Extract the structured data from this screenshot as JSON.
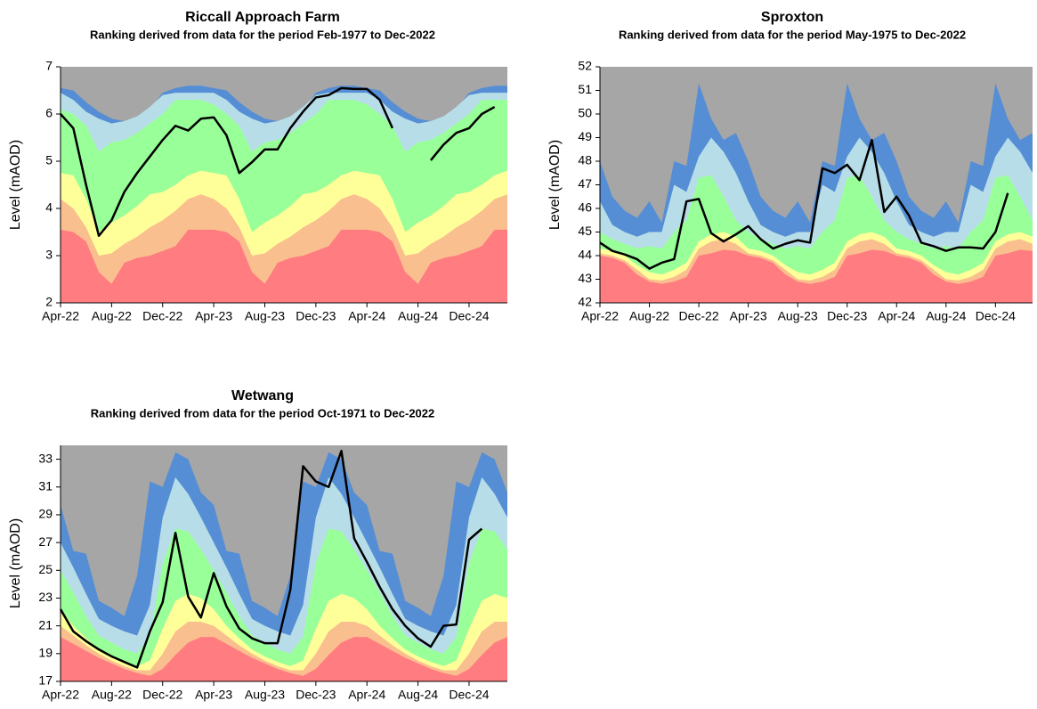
{
  "chart_data": [
    {
      "type": "area",
      "title": "Riccall Approach Farm",
      "subtitle": "Ranking derived from data for the period Feb-1977 to Dec-2022",
      "y_label": "Level (mAOD)",
      "categories": [
        "Apr-22",
        null,
        null,
        null,
        "Aug-22",
        null,
        null,
        null,
        "Dec-22",
        null,
        null,
        null,
        "Apr-23",
        null,
        null,
        null,
        "Aug-23",
        null,
        null,
        null,
        "Dec-23",
        null,
        null,
        null,
        "Apr-24",
        null,
        null,
        null,
        "Aug-24",
        null,
        null,
        null,
        "Dec-24",
        null,
        null,
        null
      ],
      "ylim": [
        2,
        7
      ],
      "yticks": [
        2,
        3,
        4,
        5,
        6,
        7
      ],
      "plot_color": "#a6a6a6",
      "series": [
        {
          "type": "area",
          "color": "#ff7c80",
          "values": [
            3.55,
            3.5,
            3.3,
            2.65,
            2.4,
            2.85,
            2.95,
            3.0,
            3.1,
            3.2,
            3.55,
            3.55,
            3.55,
            3.5,
            3.3,
            2.65,
            2.4,
            2.85,
            2.95,
            3.0,
            3.1,
            3.2,
            3.55,
            3.55,
            3.55,
            3.5,
            3.3,
            2.65,
            2.4,
            2.85,
            2.95,
            3.0,
            3.1,
            3.2,
            3.55,
            3.55
          ]
        },
        {
          "type": "area",
          "color": "#fabf8f",
          "values": [
            4.2,
            4.0,
            3.6,
            3.0,
            3.05,
            3.25,
            3.4,
            3.6,
            3.75,
            3.95,
            4.2,
            4.3,
            4.2,
            4.0,
            3.6,
            3.0,
            3.05,
            3.25,
            3.4,
            3.6,
            3.75,
            3.95,
            4.2,
            4.3,
            4.2,
            4.0,
            3.6,
            3.0,
            3.05,
            3.25,
            3.4,
            3.6,
            3.75,
            3.95,
            4.2,
            4.3
          ]
        },
        {
          "type": "area",
          "color": "#ffff99",
          "values": [
            4.75,
            4.7,
            4.2,
            3.5,
            3.7,
            3.85,
            4.05,
            4.3,
            4.35,
            4.5,
            4.7,
            4.8,
            4.75,
            4.7,
            4.2,
            3.5,
            3.7,
            3.85,
            4.05,
            4.3,
            4.35,
            4.5,
            4.7,
            4.8,
            4.75,
            4.7,
            4.2,
            3.5,
            3.7,
            3.85,
            4.05,
            4.3,
            4.35,
            4.5,
            4.7,
            4.8
          ]
        },
        {
          "type": "area",
          "color": "#99ff99",
          "values": [
            6.1,
            6.0,
            5.75,
            5.2,
            5.4,
            5.45,
            5.6,
            5.8,
            6.0,
            6.3,
            6.3,
            6.3,
            6.2,
            6.0,
            5.75,
            5.2,
            5.4,
            5.45,
            5.6,
            5.8,
            6.0,
            6.3,
            6.3,
            6.3,
            6.2,
            6.0,
            5.75,
            5.2,
            5.4,
            5.45,
            5.6,
            5.8,
            6.0,
            6.3,
            6.3,
            6.3
          ]
        },
        {
          "type": "area",
          "color": "#b7dee8",
          "values": [
            6.45,
            6.3,
            6.05,
            5.9,
            5.8,
            5.85,
            5.95,
            6.15,
            6.4,
            6.45,
            6.45,
            6.45,
            6.45,
            6.3,
            6.05,
            5.9,
            5.8,
            5.85,
            5.95,
            6.15,
            6.4,
            6.45,
            6.45,
            6.45,
            6.45,
            6.3,
            6.05,
            5.9,
            5.8,
            5.85,
            5.95,
            6.15,
            6.4,
            6.45,
            6.45,
            6.45
          ]
        },
        {
          "type": "area",
          "color": "#558ed5",
          "values": [
            6.55,
            6.5,
            6.25,
            6.05,
            5.9,
            5.85,
            5.9,
            6.1,
            6.45,
            6.55,
            6.6,
            6.6,
            6.55,
            6.5,
            6.25,
            6.05,
            5.9,
            5.85,
            5.9,
            6.1,
            6.45,
            6.55,
            6.6,
            6.6,
            6.55,
            6.5,
            6.25,
            6.05,
            5.9,
            5.85,
            5.9,
            6.1,
            6.45,
            6.55,
            6.6,
            6.6
          ]
        },
        {
          "type": "line",
          "color": "#000000",
          "values": [
            6.0,
            5.7,
            4.5,
            3.42,
            3.75,
            4.35,
            4.75,
            5.1,
            5.45,
            5.75,
            5.65,
            5.9,
            5.93,
            5.55,
            4.75,
            4.98,
            5.25,
            5.25,
            5.7,
            6.05,
            6.35,
            6.4,
            6.55,
            6.53,
            6.53,
            6.3,
            5.7,
            null,
            null,
            5.02,
            5.35,
            5.6,
            5.7,
            6.0,
            6.15,
            null
          ]
        }
      ]
    },
    {
      "type": "area",
      "title": "Sproxton",
      "subtitle": "Ranking derived from data for the period May-1975 to Dec-2022",
      "y_label": "Level (mAOD)",
      "categories": [
        "Apr-22",
        null,
        null,
        null,
        "Aug-22",
        null,
        null,
        null,
        "Dec-22",
        null,
        null,
        null,
        "Apr-23",
        null,
        null,
        null,
        "Aug-23",
        null,
        null,
        null,
        "Dec-23",
        null,
        null,
        null,
        "Apr-24",
        null,
        null,
        null,
        "Aug-24",
        null,
        null,
        null,
        "Dec-24",
        null,
        null,
        null
      ],
      "ylim": [
        42,
        52
      ],
      "yticks": [
        42,
        43,
        44,
        45,
        46,
        47,
        48,
        49,
        50,
        51,
        52
      ],
      "plot_color": "#a6a6a6",
      "series": [
        {
          "type": "area",
          "color": "#ff7c80",
          "values": [
            44.0,
            43.9,
            43.7,
            43.2,
            42.9,
            42.8,
            42.9,
            43.1,
            44.0,
            44.1,
            44.25,
            44.2,
            44.0,
            43.9,
            43.7,
            43.2,
            42.9,
            42.8,
            42.9,
            43.1,
            44.0,
            44.1,
            44.25,
            44.2,
            44.0,
            43.9,
            43.7,
            43.2,
            42.9,
            42.8,
            42.9,
            43.1,
            44.0,
            44.1,
            44.25,
            44.2
          ]
        },
        {
          "type": "area",
          "color": "#fabf8f",
          "values": [
            44.1,
            44.0,
            43.8,
            43.4,
            43.0,
            42.95,
            43.1,
            43.4,
            44.3,
            44.6,
            44.7,
            44.5,
            44.1,
            44.0,
            43.8,
            43.4,
            43.0,
            42.95,
            43.1,
            43.4,
            44.3,
            44.6,
            44.7,
            44.5,
            44.1,
            44.0,
            43.8,
            43.4,
            43.0,
            42.95,
            43.1,
            43.4,
            44.3,
            44.6,
            44.7,
            44.5
          ]
        },
        {
          "type": "area",
          "color": "#ffff99",
          "values": [
            44.3,
            44.2,
            44.0,
            43.6,
            43.3,
            43.2,
            43.4,
            43.7,
            44.6,
            44.9,
            45.0,
            44.8,
            44.3,
            44.2,
            44.0,
            43.6,
            43.3,
            43.2,
            43.4,
            43.7,
            44.6,
            44.9,
            45.0,
            44.8,
            44.3,
            44.2,
            44.0,
            43.6,
            43.3,
            43.2,
            43.4,
            43.7,
            44.6,
            44.9,
            45.0,
            44.8
          ]
        },
        {
          "type": "area",
          "color": "#99ff99",
          "values": [
            45.0,
            44.7,
            44.5,
            44.3,
            44.4,
            44.3,
            45.0,
            45.5,
            47.3,
            47.4,
            46.5,
            45.5,
            45.0,
            44.7,
            44.5,
            44.3,
            44.4,
            44.3,
            45.0,
            45.5,
            47.3,
            47.4,
            46.5,
            45.5,
            45.0,
            44.7,
            44.5,
            44.3,
            44.4,
            44.3,
            45.0,
            45.5,
            47.3,
            47.4,
            46.5,
            45.5
          ]
        },
        {
          "type": "area",
          "color": "#b7dee8",
          "values": [
            46.3,
            45.3,
            45.0,
            44.8,
            45.0,
            45.0,
            47.0,
            46.7,
            48.2,
            49.0,
            48.4,
            47.5,
            46.3,
            45.3,
            45.0,
            44.8,
            45.0,
            45.0,
            47.0,
            46.7,
            48.2,
            49.0,
            48.4,
            47.5,
            46.3,
            45.3,
            45.0,
            44.8,
            45.0,
            45.0,
            47.0,
            46.7,
            48.2,
            49.0,
            48.4,
            47.5
          ]
        },
        {
          "type": "area",
          "color": "#558ed5",
          "values": [
            48.0,
            46.5,
            45.9,
            45.6,
            46.3,
            45.4,
            48.0,
            47.8,
            51.3,
            49.8,
            48.9,
            49.2,
            48.0,
            46.5,
            45.9,
            45.6,
            46.3,
            45.4,
            48.0,
            47.8,
            51.3,
            49.8,
            48.9,
            49.2,
            48.0,
            46.5,
            45.9,
            45.6,
            46.3,
            45.4,
            48.0,
            47.8,
            51.3,
            49.8,
            48.9,
            49.2
          ]
        },
        {
          "type": "line",
          "color": "#000000",
          "values": [
            44.55,
            44.2,
            44.05,
            43.85,
            43.45,
            43.7,
            43.85,
            46.3,
            46.4,
            44.95,
            44.6,
            44.9,
            45.25,
            44.7,
            44.3,
            44.5,
            44.65,
            44.55,
            47.7,
            47.5,
            47.85,
            47.2,
            48.9,
            45.85,
            46.5,
            45.7,
            44.55,
            44.4,
            44.2,
            44.35,
            44.35,
            44.3,
            45.0,
            46.65,
            null,
            null
          ]
        }
      ]
    },
    {
      "type": "area",
      "title": "Wetwang",
      "subtitle": "Ranking derived from data for the period Oct-1971 to Dec-2022",
      "y_label": "Level (mAOD)",
      "categories": [
        "Apr-22",
        null,
        null,
        null,
        "Aug-22",
        null,
        null,
        null,
        "Dec-22",
        null,
        null,
        null,
        "Apr-23",
        null,
        null,
        null,
        "Aug-23",
        null,
        null,
        null,
        "Dec-23",
        null,
        null,
        null,
        "Apr-24",
        null,
        null,
        null,
        "Aug-24",
        null,
        null,
        null,
        "Dec-24",
        null,
        null,
        null
      ],
      "ylim": [
        17,
        34
      ],
      "yticks": [
        17,
        19,
        21,
        23,
        25,
        27,
        29,
        31,
        33
      ],
      "plot_color": "#a6a6a6",
      "series": [
        {
          "type": "area",
          "color": "#ff7c80",
          "values": [
            20.2,
            19.7,
            19.2,
            18.7,
            18.3,
            17.9,
            17.6,
            17.4,
            17.9,
            18.9,
            19.8,
            20.2,
            20.2,
            19.7,
            19.2,
            18.7,
            18.3,
            17.9,
            17.6,
            17.4,
            17.9,
            18.9,
            19.8,
            20.2,
            20.2,
            19.7,
            19.2,
            18.7,
            18.3,
            17.9,
            17.6,
            17.4,
            17.9,
            18.9,
            19.8,
            20.2
          ]
        },
        {
          "type": "area",
          "color": "#fabf8f",
          "values": [
            21.0,
            20.3,
            19.6,
            19.0,
            18.5,
            18.1,
            17.8,
            17.8,
            19.0,
            20.6,
            21.3,
            21.3,
            21.0,
            20.3,
            19.6,
            19.0,
            18.5,
            18.1,
            17.8,
            17.8,
            19.0,
            20.6,
            21.3,
            21.3,
            21.0,
            20.3,
            19.6,
            19.0,
            18.5,
            18.1,
            17.8,
            17.8,
            19.0,
            20.6,
            21.3,
            21.3
          ]
        },
        {
          "type": "area",
          "color": "#ffff99",
          "values": [
            22.2,
            21.0,
            20.1,
            19.3,
            18.8,
            18.4,
            18.1,
            18.5,
            20.8,
            22.8,
            23.3,
            23.0,
            22.2,
            21.0,
            20.1,
            19.3,
            18.8,
            18.4,
            18.1,
            18.5,
            20.8,
            22.8,
            23.3,
            23.0,
            22.2,
            21.0,
            20.1,
            19.3,
            18.8,
            18.4,
            18.1,
            18.5,
            20.8,
            22.8,
            23.3,
            23.0
          ]
        },
        {
          "type": "area",
          "color": "#99ff99",
          "values": [
            25.0,
            23.4,
            21.7,
            20.3,
            19.8,
            19.3,
            19.0,
            20.2,
            25.5,
            28.0,
            27.8,
            26.5,
            25.0,
            23.4,
            21.7,
            20.3,
            19.8,
            19.3,
            19.0,
            20.2,
            25.5,
            28.0,
            27.8,
            26.5,
            25.0,
            23.4,
            21.7,
            20.3,
            19.8,
            19.3,
            19.0,
            20.2,
            25.5,
            28.0,
            27.8,
            26.5
          ]
        },
        {
          "type": "area",
          "color": "#b7dee8",
          "values": [
            27.0,
            25.2,
            23.3,
            21.5,
            21.0,
            20.6,
            20.3,
            22.5,
            28.8,
            31.7,
            30.5,
            28.8,
            27.0,
            25.2,
            23.3,
            21.5,
            21.0,
            20.6,
            20.3,
            22.5,
            28.8,
            31.7,
            30.5,
            28.8,
            27.0,
            25.2,
            23.3,
            21.5,
            21.0,
            20.6,
            20.3,
            22.5,
            28.8,
            31.7,
            30.5,
            28.8
          ]
        },
        {
          "type": "area",
          "color": "#558ed5",
          "values": [
            29.7,
            26.4,
            26.2,
            22.8,
            22.3,
            21.7,
            24.6,
            31.4,
            31.0,
            33.5,
            33.0,
            30.6,
            29.7,
            26.4,
            26.2,
            22.8,
            22.3,
            21.7,
            24.6,
            31.4,
            31.0,
            33.5,
            33.0,
            30.6,
            29.7,
            26.4,
            26.2,
            22.8,
            22.3,
            21.7,
            24.6,
            31.4,
            31.0,
            33.5,
            33.0,
            30.6
          ]
        },
        {
          "type": "line",
          "color": "#000000",
          "values": [
            22.2,
            20.6,
            19.9,
            19.3,
            18.8,
            18.4,
            18.0,
            20.6,
            22.7,
            27.7,
            23.1,
            21.6,
            24.8,
            22.4,
            20.8,
            20.1,
            19.75,
            19.75,
            23.6,
            32.5,
            31.4,
            31.0,
            33.6,
            27.3,
            25.6,
            23.8,
            22.2,
            21.0,
            20.1,
            19.5,
            21.0,
            21.1,
            27.2,
            28.0,
            null,
            null
          ]
        }
      ]
    }
  ]
}
